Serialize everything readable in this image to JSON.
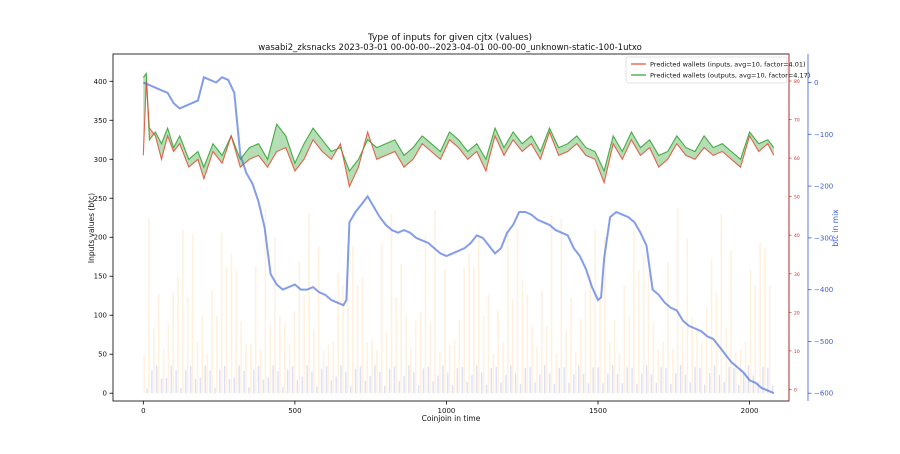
{
  "chart_data": {
    "type": "line",
    "title": "Type of inputs for given cjtx (values)",
    "subtitle": "wasabi2_zksnacks 2023-03-01 00-00-00--2023-04-01 00-00-00_unknown-static-100-1utxo",
    "xlabel": "Coinjoin in time",
    "ylabel": "Inputs values (btc)",
    "y2label": "btc in mix",
    "xlim": [
      -100,
      2130
    ],
    "ylim": [
      -10,
      435
    ],
    "y2lim": [
      -615,
      55
    ],
    "y3lim": [
      -3,
      87
    ],
    "xticks": [
      0,
      500,
      1000,
      1500,
      2000
    ],
    "yticks": [
      0,
      50,
      100,
      150,
      200,
      250,
      300,
      350,
      400
    ],
    "y2ticks": [
      0,
      -100,
      -200,
      -300,
      -400,
      -500,
      -600
    ],
    "y2ticklabels": [
      "0",
      "−100",
      "−200",
      "−300",
      "−400",
      "−500",
      "−600"
    ],
    "y3ticks": [
      0,
      10,
      20,
      30,
      40,
      50,
      60,
      70,
      80
    ],
    "grid": false,
    "legend_position": "top-right",
    "colors": {
      "inputs": "#e24a33",
      "outputs": "#2ca02c",
      "mix": "#4169e1",
      "bars_orange": "#ffb347",
      "bars_blue": "#6f7fdf",
      "y2_axis": "#3b5bdb",
      "y3_axis": "#d62728"
    },
    "series": [
      {
        "name": "Predicted wallets (inputs, avg=10, factor=4.01)",
        "x": [
          0,
          10,
          20,
          40,
          60,
          80,
          100,
          120,
          150,
          180,
          200,
          230,
          260,
          290,
          320,
          350,
          380,
          410,
          440,
          470,
          500,
          530,
          560,
          590,
          620,
          650,
          680,
          710,
          740,
          770,
          800,
          830,
          860,
          890,
          920,
          950,
          980,
          1010,
          1040,
          1070,
          1100,
          1130,
          1160,
          1190,
          1220,
          1250,
          1280,
          1310,
          1340,
          1370,
          1400,
          1430,
          1460,
          1490,
          1520,
          1550,
          1580,
          1610,
          1640,
          1670,
          1700,
          1730,
          1760,
          1790,
          1820,
          1850,
          1880,
          1910,
          1940,
          1970,
          2000,
          2030,
          2060,
          2080
        ],
        "values": [
          305,
          400,
          340,
          330,
          300,
          330,
          310,
          320,
          290,
          300,
          275,
          310,
          295,
          330,
          290,
          300,
          305,
          290,
          310,
          315,
          285,
          300,
          325,
          310,
          300,
          320,
          265,
          290,
          335,
          300,
          305,
          310,
          290,
          300,
          320,
          310,
          300,
          325,
          315,
          300,
          310,
          285,
          330,
          305,
          325,
          310,
          320,
          300,
          335,
          305,
          310,
          320,
          305,
          300,
          270,
          320,
          300,
          325,
          305,
          315,
          290,
          300,
          320,
          305,
          300,
          315,
          305,
          310,
          300,
          290,
          330,
          310,
          320,
          305
        ]
      },
      {
        "name": "Predicted wallets (outputs, avg=10, factor=4.17)",
        "x": [
          0,
          10,
          20,
          40,
          60,
          80,
          100,
          120,
          150,
          180,
          200,
          230,
          260,
          290,
          320,
          350,
          380,
          410,
          440,
          470,
          500,
          530,
          560,
          590,
          620,
          650,
          680,
          710,
          740,
          770,
          800,
          830,
          860,
          890,
          920,
          950,
          980,
          1010,
          1040,
          1070,
          1100,
          1130,
          1160,
          1190,
          1220,
          1250,
          1280,
          1310,
          1340,
          1370,
          1400,
          1430,
          1460,
          1490,
          1520,
          1550,
          1580,
          1610,
          1640,
          1670,
          1700,
          1730,
          1760,
          1790,
          1820,
          1850,
          1880,
          1910,
          1940,
          1970,
          2000,
          2030,
          2060,
          2080
        ],
        "values": [
          405,
          410,
          325,
          335,
          320,
          340,
          315,
          330,
          300,
          310,
          290,
          320,
          305,
          330,
          300,
          315,
          320,
          300,
          345,
          330,
          295,
          320,
          340,
          325,
          310,
          315,
          285,
          300,
          325,
          315,
          320,
          325,
          305,
          315,
          330,
          320,
          310,
          335,
          325,
          310,
          320,
          300,
          340,
          315,
          335,
          320,
          330,
          310,
          340,
          315,
          320,
          330,
          315,
          310,
          285,
          330,
          310,
          335,
          315,
          325,
          305,
          310,
          330,
          315,
          310,
          330,
          315,
          320,
          310,
          300,
          335,
          320,
          325,
          315
        ]
      },
      {
        "name": "btc in mix",
        "axis": "y2",
        "x": [
          0,
          20,
          40,
          60,
          80,
          100,
          120,
          140,
          160,
          180,
          200,
          220,
          240,
          260,
          280,
          300,
          320,
          340,
          360,
          380,
          400,
          420,
          440,
          460,
          480,
          500,
          520,
          540,
          560,
          580,
          600,
          620,
          640,
          660,
          670,
          680,
          700,
          720,
          740,
          760,
          780,
          800,
          820,
          840,
          860,
          880,
          900,
          920,
          940,
          960,
          980,
          1000,
          1020,
          1040,
          1060,
          1080,
          1100,
          1120,
          1140,
          1160,
          1180,
          1200,
          1220,
          1240,
          1260,
          1280,
          1300,
          1320,
          1340,
          1360,
          1380,
          1400,
          1420,
          1440,
          1460,
          1480,
          1500,
          1510,
          1520,
          1540,
          1560,
          1580,
          1600,
          1620,
          1640,
          1660,
          1680,
          1700,
          1720,
          1740,
          1760,
          1780,
          1800,
          1820,
          1840,
          1860,
          1880,
          1900,
          1920,
          1940,
          1960,
          1980,
          2000,
          2020,
          2040,
          2060,
          2080
        ],
        "values": [
          0,
          -5,
          -10,
          -15,
          -20,
          -40,
          -50,
          -45,
          -40,
          -35,
          10,
          5,
          0,
          10,
          5,
          -20,
          -140,
          -175,
          -195,
          -230,
          -280,
          -370,
          -390,
          -400,
          -395,
          -390,
          -400,
          -400,
          -395,
          -405,
          -410,
          -420,
          -425,
          -430,
          -420,
          -270,
          -250,
          -235,
          -220,
          -240,
          -260,
          -275,
          -285,
          -290,
          -285,
          -290,
          -300,
          -305,
          -310,
          -320,
          -330,
          -335,
          -330,
          -325,
          -320,
          -310,
          -295,
          -300,
          -315,
          -330,
          -320,
          -290,
          -275,
          -250,
          -250,
          -255,
          -265,
          -270,
          -275,
          -285,
          -290,
          -295,
          -320,
          -335,
          -360,
          -395,
          -420,
          -415,
          -340,
          -260,
          -250,
          -255,
          -260,
          -270,
          -290,
          -315,
          -400,
          -410,
          -425,
          -435,
          -440,
          -460,
          -470,
          -475,
          -480,
          -490,
          -495,
          -510,
          -525,
          -540,
          -550,
          -560,
          -575,
          -580,
          -590,
          -595,
          -600
        ]
      }
    ]
  }
}
